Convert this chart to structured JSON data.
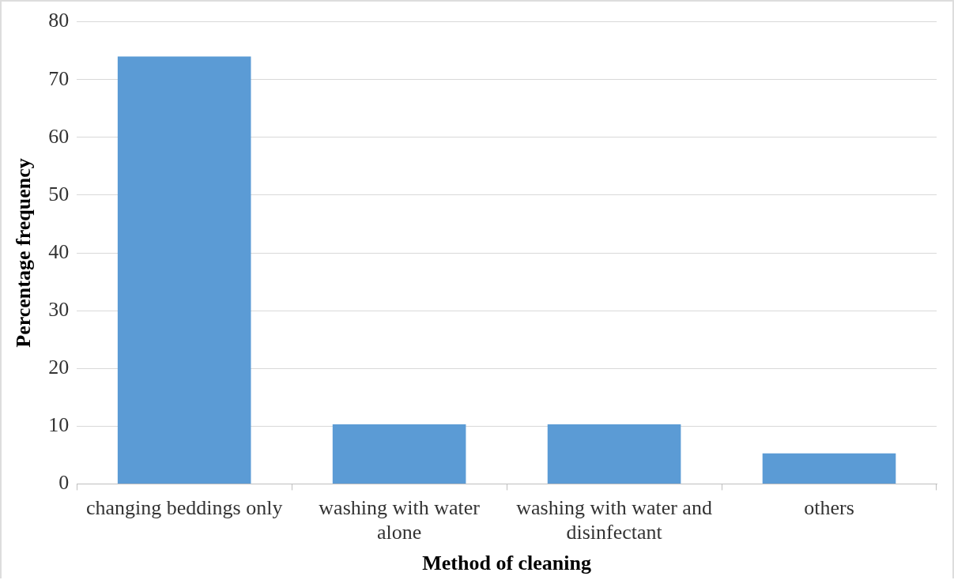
{
  "chart_data": {
    "type": "bar",
    "xlabel": "Method of cleaning",
    "ylabel": "Percentage frequency",
    "categories": [
      "changing beddings only",
      "washing with water alone",
      "washing with water and disinfectant",
      "others"
    ],
    "values": [
      74,
      10.3,
      10.3,
      5.3
    ],
    "color": "#5b9bd5",
    "ylim": [
      0,
      80
    ],
    "yticks": [
      0,
      10,
      20,
      30,
      40,
      50,
      60,
      70,
      80
    ],
    "grid": "y",
    "legend": false
  }
}
